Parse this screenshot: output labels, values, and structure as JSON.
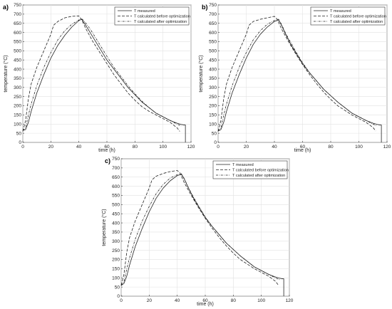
{
  "chart_data": [
    {
      "type": "line",
      "panel_label": "a)",
      "xlabel": "time (h)",
      "ylabel": "temperature (°C)",
      "xlim": [
        0,
        120
      ],
      "ylim": [
        0,
        750
      ],
      "xticks": [
        0,
        20,
        40,
        60,
        80,
        100,
        120
      ],
      "yticks": [
        0,
        50,
        100,
        150,
        200,
        250,
        300,
        350,
        400,
        450,
        500,
        550,
        600,
        650,
        700,
        750
      ],
      "grid": true,
      "legend_position": "top-right",
      "series": [
        {
          "name": "T measured",
          "style": "solid",
          "x": [
            0,
            2,
            4,
            6,
            10,
            15,
            20,
            25,
            30,
            35,
            40,
            42,
            44,
            48,
            52,
            56,
            60,
            65,
            70,
            75,
            80,
            85,
            90,
            95,
            100,
            105,
            110,
            113,
            115,
            116,
            116
          ],
          "y": [
            65,
            70,
            110,
            170,
            270,
            370,
            460,
            530,
            585,
            630,
            665,
            672,
            650,
            600,
            550,
            500,
            450,
            400,
            350,
            300,
            260,
            220,
            190,
            160,
            140,
            120,
            105,
            98,
            95,
            95,
            0
          ]
        },
        {
          "name": "T calculated before optimization",
          "style": "dashed",
          "x": [
            0,
            2,
            4,
            6,
            10,
            15,
            20,
            22,
            25,
            30,
            35,
            40,
            42,
            45,
            50,
            55,
            60,
            65,
            70,
            75,
            80,
            85,
            90,
            95,
            100,
            105,
            110,
            112
          ],
          "y": [
            60,
            120,
            240,
            320,
            410,
            500,
            590,
            640,
            660,
            680,
            688,
            690,
            670,
            620,
            550,
            490,
            430,
            370,
            320,
            270,
            230,
            195,
            170,
            150,
            130,
            110,
            80,
            60
          ]
        },
        {
          "name": "T calculated after optimization",
          "style": "dashdot",
          "x": [
            0,
            2,
            4,
            6,
            10,
            15,
            20,
            25,
            30,
            35,
            40,
            42,
            44,
            48,
            52,
            56,
            60,
            65,
            70,
            75,
            80,
            85,
            90,
            95,
            100,
            105,
            110,
            113
          ],
          "y": [
            65,
            80,
            150,
            210,
            310,
            410,
            490,
            560,
            610,
            645,
            668,
            675,
            660,
            620,
            570,
            520,
            470,
            410,
            360,
            310,
            265,
            225,
            190,
            160,
            140,
            120,
            100,
            90
          ]
        }
      ]
    },
    {
      "type": "line",
      "panel_label": "b)",
      "xlabel": "time (h)",
      "ylabel": "temperature (°C)",
      "xlim": [
        0,
        120
      ],
      "ylim": [
        0,
        750
      ],
      "xticks": [
        0,
        20,
        40,
        60,
        80,
        100,
        120
      ],
      "yticks": [
        0,
        50,
        100,
        150,
        200,
        250,
        300,
        350,
        400,
        450,
        500,
        550,
        600,
        650,
        700,
        750
      ],
      "grid": true,
      "legend_position": "top-right",
      "series": [
        {
          "name": "T measured",
          "style": "solid",
          "x": [
            0,
            2,
            4,
            6,
            10,
            15,
            20,
            25,
            30,
            35,
            40,
            43,
            45,
            48,
            52,
            56,
            60,
            65,
            70,
            75,
            80,
            85,
            90,
            95,
            100,
            105,
            110,
            113,
            115,
            116,
            116
          ],
          "y": [
            62,
            70,
            110,
            170,
            270,
            370,
            460,
            535,
            590,
            630,
            660,
            668,
            640,
            590,
            530,
            480,
            430,
            380,
            335,
            290,
            255,
            220,
            190,
            160,
            140,
            120,
            105,
            98,
            95,
            95,
            0
          ]
        },
        {
          "name": "T calculated before optimization",
          "style": "dashed",
          "x": [
            0,
            2,
            4,
            6,
            10,
            15,
            20,
            22,
            25,
            30,
            35,
            40,
            42,
            45,
            50,
            55,
            60,
            65,
            70,
            75,
            80,
            85,
            90,
            95,
            100,
            105,
            110,
            112
          ],
          "y": [
            60,
            120,
            240,
            320,
            410,
            500,
            590,
            640,
            660,
            672,
            680,
            688,
            672,
            620,
            550,
            485,
            425,
            370,
            320,
            275,
            235,
            200,
            175,
            150,
            130,
            110,
            82,
            62
          ]
        },
        {
          "name": "T calculated after optimization",
          "style": "dashdot",
          "x": [
            0,
            2,
            4,
            6,
            10,
            15,
            20,
            25,
            30,
            35,
            40,
            43,
            45,
            48,
            52,
            56,
            60,
            65,
            70,
            75,
            80,
            85,
            90,
            95,
            100,
            105,
            110,
            113
          ],
          "y": [
            62,
            80,
            150,
            210,
            310,
            410,
            490,
            560,
            610,
            645,
            665,
            672,
            645,
            595,
            540,
            485,
            435,
            380,
            335,
            290,
            255,
            220,
            190,
            160,
            140,
            120,
            100,
            90
          ]
        }
      ]
    },
    {
      "type": "line",
      "panel_label": "c)",
      "xlabel": "time (h)",
      "ylabel": "temperature (°C)",
      "xlim": [
        0,
        120
      ],
      "ylim": [
        0,
        750
      ],
      "xticks": [
        0,
        20,
        40,
        60,
        80,
        100,
        120
      ],
      "yticks": [
        0,
        50,
        100,
        150,
        200,
        250,
        300,
        350,
        400,
        450,
        500,
        550,
        600,
        650,
        700,
        750
      ],
      "grid": true,
      "legend_position": "top-right",
      "series": [
        {
          "name": "T measured",
          "style": "solid",
          "x": [
            0,
            2,
            4,
            6,
            10,
            15,
            20,
            25,
            30,
            35,
            40,
            43,
            45,
            48,
            52,
            56,
            60,
            65,
            70,
            75,
            80,
            85,
            90,
            95,
            100,
            105,
            110,
            113,
            115,
            116,
            116
          ],
          "y": [
            58,
            70,
            110,
            170,
            270,
            370,
            460,
            535,
            590,
            630,
            658,
            665,
            640,
            590,
            530,
            480,
            430,
            380,
            335,
            290,
            255,
            220,
            190,
            160,
            140,
            120,
            105,
            98,
            95,
            95,
            0
          ]
        },
        {
          "name": "T calculated before optimization",
          "style": "dashed",
          "x": [
            0,
            2,
            4,
            6,
            10,
            15,
            20,
            22,
            25,
            30,
            35,
            40,
            42,
            45,
            50,
            55,
            60,
            65,
            70,
            75,
            80,
            85,
            90,
            95,
            100,
            105,
            110,
            112
          ],
          "y": [
            60,
            120,
            240,
            320,
            410,
            500,
            590,
            635,
            655,
            670,
            680,
            686,
            672,
            620,
            550,
            485,
            425,
            370,
            320,
            275,
            235,
            200,
            175,
            150,
            130,
            110,
            82,
            62
          ]
        },
        {
          "name": "T calculated after optimization",
          "style": "dashdot",
          "x": [
            0,
            2,
            4,
            6,
            10,
            15,
            20,
            25,
            30,
            35,
            40,
            43,
            45,
            48,
            52,
            56,
            60,
            65,
            70,
            75,
            80,
            85,
            90,
            95,
            100,
            105,
            110,
            113
          ],
          "y": [
            60,
            80,
            150,
            210,
            310,
            410,
            490,
            560,
            610,
            645,
            663,
            668,
            642,
            592,
            535,
            482,
            432,
            380,
            335,
            290,
            255,
            220,
            190,
            160,
            140,
            120,
            100,
            90
          ]
        }
      ]
    }
  ]
}
